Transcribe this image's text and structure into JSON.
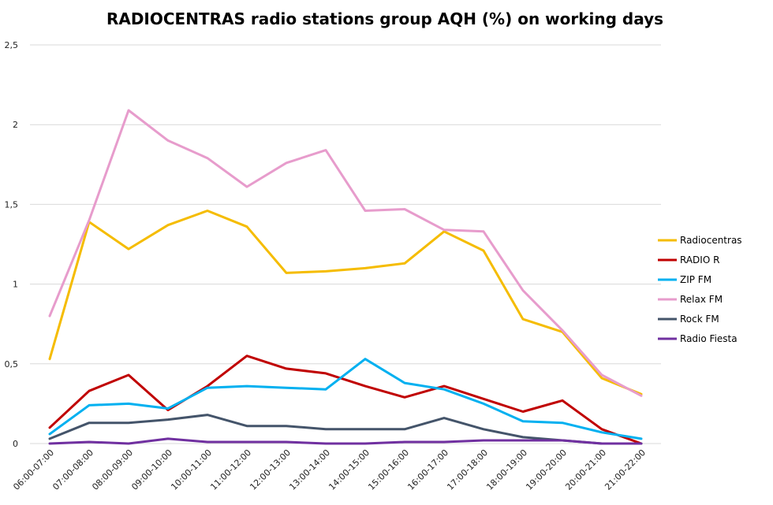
{
  "chart_data": {
    "type": "line",
    "title": "RADIOCENTRAS radio stations group AQH (%) on working days",
    "xlabel": "",
    "ylabel": "",
    "ylim": [
      0,
      2.5
    ],
    "yticks": [
      "0",
      "0,5",
      "1",
      "1,5",
      "2",
      "2,5"
    ],
    "grid": true,
    "legend": "right",
    "categories": [
      "06:00-07:00",
      "07:00-08:00",
      "08:00-09:00",
      "09:00-10:00",
      "10:00-11:00",
      "11:00-12:00",
      "12:00-13:00",
      "13:00-14:00",
      "14:00-15:00",
      "15:00-16:00",
      "16:00-17:00",
      "17:00-18:00",
      "18:00-19:00",
      "19:00-20:00",
      "20:00-21:00",
      "21:00-22:00"
    ],
    "series": [
      {
        "name": "Radiocentras",
        "color": "#f5bc00",
        "values": [
          0.53,
          1.39,
          1.22,
          1.37,
          1.46,
          1.36,
          1.07,
          1.08,
          1.1,
          1.13,
          1.33,
          1.21,
          0.78,
          0.7,
          0.41,
          0.31
        ]
      },
      {
        "name": "RADIO R",
        "color": "#c00000",
        "values": [
          0.1,
          0.33,
          0.43,
          0.21,
          0.36,
          0.55,
          0.47,
          0.44,
          0.36,
          0.29,
          0.36,
          0.28,
          0.2,
          0.27,
          0.09,
          0.0
        ]
      },
      {
        "name": "ZIP FM",
        "color": "#00b0f0",
        "values": [
          0.06,
          0.24,
          0.25,
          0.22,
          0.35,
          0.36,
          0.35,
          0.34,
          0.53,
          0.38,
          0.34,
          0.25,
          0.14,
          0.13,
          0.07,
          0.03
        ]
      },
      {
        "name": "Relax FM",
        "color": "#e79ccc",
        "values": [
          0.8,
          1.4,
          2.09,
          1.9,
          1.79,
          1.61,
          1.76,
          1.84,
          1.46,
          1.47,
          1.34,
          1.33,
          0.96,
          0.71,
          0.43,
          0.3
        ]
      },
      {
        "name": "Rock FM",
        "color": "#44546a",
        "values": [
          0.03,
          0.13,
          0.13,
          0.15,
          0.18,
          0.11,
          0.11,
          0.09,
          0.09,
          0.09,
          0.16,
          0.09,
          0.04,
          0.02,
          0.0,
          0.0
        ]
      },
      {
        "name": "Radio Fiesta",
        "color": "#7030a0",
        "values": [
          0.0,
          0.01,
          0.0,
          0.03,
          0.01,
          0.01,
          0.01,
          0.0,
          0.0,
          0.01,
          0.01,
          0.02,
          0.02,
          0.02,
          0.0,
          0.0
        ]
      }
    ]
  }
}
